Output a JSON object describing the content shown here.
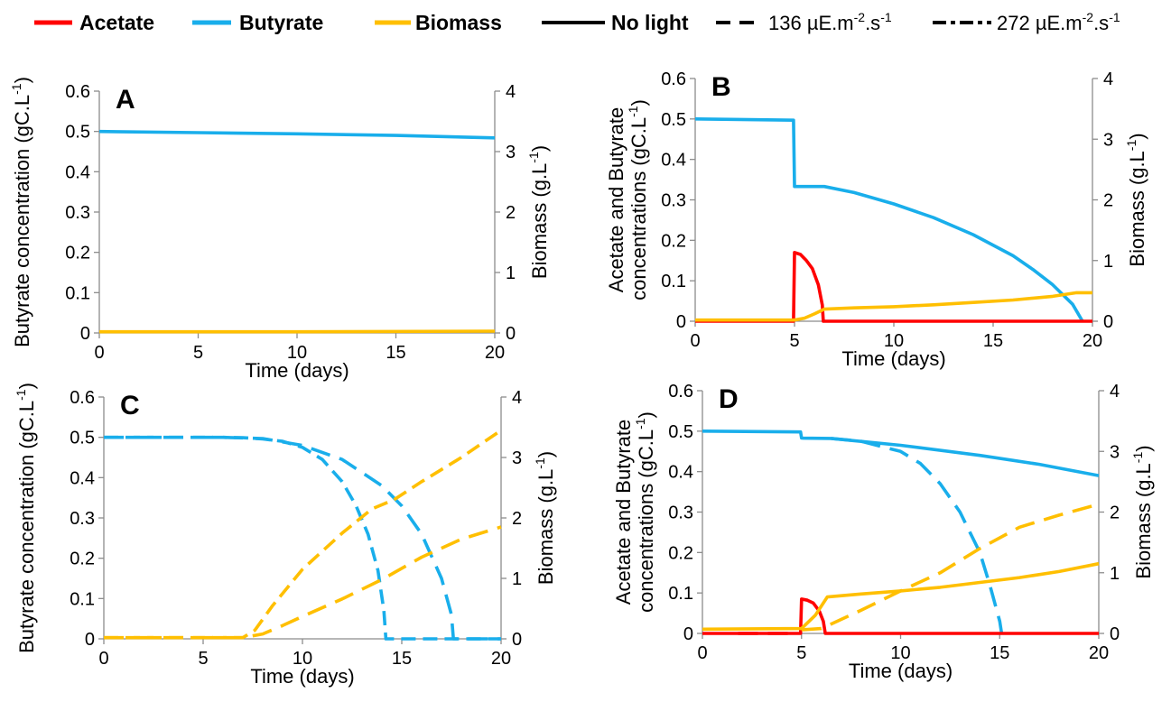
{
  "legend": {
    "acetate": "Acetate",
    "butyrate": "Butyrate",
    "biomass": "Biomass",
    "no_light": "No light",
    "light_136": "136 µE.m",
    "light_272": "272 µE.m",
    "exp_m2": "-2",
    "dot_s": ".s",
    "exp_m1": "-1"
  },
  "colors": {
    "acetate": "#ff0000",
    "butyrate": "#19aeeb",
    "biomass": "#ffbf00",
    "axis": "#8c8c8c"
  },
  "chart_data": [
    {
      "id": "A",
      "type": "line",
      "panel_label": "A",
      "xlabel": "Time (days)",
      "ylabel": "Butyrate concentration (gC.L",
      "ylabel_sup": "-1",
      "ylabel_end": ")",
      "y2label": "Biomass (g.L",
      "y2label_sup": "-1",
      "y2label_end": ")",
      "xlim": [
        0,
        20
      ],
      "ylim": [
        0,
        0.6
      ],
      "y2lim": [
        0,
        4
      ],
      "xticks": [
        "0",
        "5",
        "10",
        "15",
        "20"
      ],
      "yticks": [
        "0",
        "0.1",
        "0.2",
        "0.3",
        "0.4",
        "0.5",
        "0.6"
      ],
      "y2ticks": [
        "0",
        "1",
        "2",
        "3",
        "4"
      ],
      "series": [
        {
          "var": "butyrate",
          "light": "none",
          "axis": "left",
          "x": [
            0,
            5,
            10,
            15,
            20
          ],
          "y": [
            0.5,
            0.497,
            0.494,
            0.49,
            0.484
          ]
        },
        {
          "var": "biomass",
          "light": "none",
          "axis": "right",
          "x": [
            0,
            10,
            20
          ],
          "y": [
            0.02,
            0.02,
            0.03
          ]
        }
      ]
    },
    {
      "id": "B",
      "type": "line",
      "panel_label": "B",
      "xlabel": "Time (days)",
      "ylabel": "Acetate and Butyrate",
      "ylabel2": "concentrations (gC.L",
      "ylabel_sup": "-1",
      "ylabel_end": ")",
      "y2label": "Biomass (g.L",
      "y2label_sup": "-1",
      "y2label_end": ")",
      "xlim": [
        0,
        20
      ],
      "ylim": [
        0,
        0.6
      ],
      "y2lim": [
        0,
        4
      ],
      "xticks": [
        "0",
        "5",
        "10",
        "15",
        "20"
      ],
      "yticks": [
        "0",
        "0.1",
        "0.2",
        "0.3",
        "0.4",
        "0.5",
        "0.6"
      ],
      "y2ticks": [
        "0",
        "1",
        "2",
        "3",
        "4"
      ],
      "series": [
        {
          "var": "butyrate",
          "light": "none",
          "axis": "left",
          "x": [
            0,
            4.95,
            5,
            6.5,
            8,
            10,
            12,
            14,
            16,
            17,
            18,
            19,
            19.5
          ],
          "y": [
            0.5,
            0.497,
            0.333,
            0.333,
            0.318,
            0.29,
            0.256,
            0.214,
            0.162,
            0.128,
            0.09,
            0.042,
            0.0
          ]
        },
        {
          "var": "acetate",
          "light": "none",
          "axis": "left",
          "x": [
            0,
            4.95,
            5,
            5.3,
            5.6,
            5.9,
            6.2,
            6.4,
            6.45,
            20
          ],
          "y": [
            0,
            0,
            0.17,
            0.165,
            0.15,
            0.13,
            0.09,
            0.04,
            0,
            0
          ]
        },
        {
          "var": "biomass",
          "light": "none",
          "axis": "right",
          "x": [
            0,
            5,
            5.5,
            6,
            6.5,
            8,
            10,
            12,
            14,
            16,
            18,
            19.2,
            20
          ],
          "y": [
            0.02,
            0.02,
            0.05,
            0.12,
            0.2,
            0.22,
            0.24,
            0.27,
            0.31,
            0.35,
            0.41,
            0.47,
            0.47
          ]
        }
      ]
    },
    {
      "id": "C",
      "type": "line",
      "panel_label": "C",
      "xlabel": "Time (days)",
      "ylabel": "Butyrate concentration (gC.L",
      "ylabel_sup": "-1",
      "ylabel_end": ")",
      "y2label": "Biomass (g.L",
      "y2label_sup": "-1",
      "y2label_end": ")",
      "xlim": [
        0,
        20
      ],
      "ylim": [
        0,
        0.6
      ],
      "y2lim": [
        0,
        4
      ],
      "xticks": [
        "0",
        "5",
        "10",
        "15",
        "20"
      ],
      "yticks": [
        "0",
        "0.1",
        "0.2",
        "0.3",
        "0.4",
        "0.5",
        "0.6"
      ],
      "y2ticks": [
        "0",
        "1",
        "2",
        "3",
        "4"
      ],
      "series": [
        {
          "var": "butyrate",
          "light": "136",
          "axis": "left",
          "x": [
            0,
            6,
            8,
            10,
            12,
            14,
            15,
            16,
            17,
            17.5,
            17.6,
            20
          ],
          "y": [
            0.5,
            0.5,
            0.497,
            0.48,
            0.445,
            0.38,
            0.33,
            0.26,
            0.15,
            0.06,
            0,
            0
          ]
        },
        {
          "var": "butyrate",
          "light": "272",
          "axis": "left",
          "x": [
            0,
            6,
            7,
            8,
            9,
            10,
            11,
            12,
            12.7,
            13.3,
            13.8,
            14.1,
            14.2,
            20
          ],
          "y": [
            0.5,
            0.5,
            0.499,
            0.496,
            0.49,
            0.475,
            0.445,
            0.39,
            0.33,
            0.26,
            0.17,
            0.07,
            0,
            0
          ]
        },
        {
          "var": "biomass",
          "light": "136",
          "axis": "right",
          "x": [
            0,
            7,
            8,
            9,
            10,
            12,
            14,
            16,
            18,
            20
          ],
          "y": [
            0.02,
            0.02,
            0.08,
            0.22,
            0.37,
            0.66,
            0.98,
            1.35,
            1.65,
            1.85
          ]
        },
        {
          "var": "biomass",
          "light": "272",
          "axis": "right",
          "x": [
            0,
            7,
            7.6,
            8.5,
            10,
            12,
            13.5,
            14.6,
            16,
            18,
            20
          ],
          "y": [
            0.02,
            0.02,
            0.14,
            0.55,
            1.15,
            1.75,
            2.15,
            2.3,
            2.6,
            3.0,
            3.45
          ]
        }
      ]
    },
    {
      "id": "D",
      "type": "line",
      "panel_label": "D",
      "xlabel": "Time (days)",
      "ylabel": "Acetate and Butyrate",
      "ylabel2": "concentrations (gC.L",
      "ylabel_sup": "-1",
      "ylabel_end": ")",
      "y2label": "Biomass (g.L",
      "y2label_sup": "-1",
      "y2label_end": ")",
      "xlim": [
        0,
        20
      ],
      "ylim": [
        0,
        0.6
      ],
      "y2lim": [
        0,
        4
      ],
      "xticks": [
        "0",
        "5",
        "10",
        "15",
        "20"
      ],
      "yticks": [
        "0",
        "0.1",
        "0.2",
        "0.3",
        "0.4",
        "0.5",
        "0.6"
      ],
      "y2ticks": [
        "0",
        "1",
        "2",
        "3",
        "4"
      ],
      "series": [
        {
          "var": "butyrate",
          "light": "none",
          "axis": "left",
          "x": [
            0,
            4.95,
            5,
            6.5,
            10,
            14,
            17,
            20
          ],
          "y": [
            0.5,
            0.498,
            0.483,
            0.482,
            0.465,
            0.44,
            0.418,
            0.39
          ]
        },
        {
          "var": "butyrate",
          "light": "136",
          "axis": "left",
          "x": [
            6.5,
            8,
            10,
            11,
            12,
            13,
            14,
            14.5,
            15,
            15.1
          ],
          "y": [
            0.482,
            0.475,
            0.45,
            0.42,
            0.37,
            0.3,
            0.2,
            0.12,
            0.03,
            0
          ]
        },
        {
          "var": "acetate",
          "light": "none",
          "axis": "left",
          "x": [
            0,
            4.95,
            5,
            5.3,
            5.6,
            5.9,
            6.1,
            6.2,
            20
          ],
          "y": [
            0,
            0,
            0.085,
            0.082,
            0.075,
            0.055,
            0.03,
            0,
            0
          ]
        },
        {
          "var": "acetate",
          "light": "136",
          "axis": "left",
          "x": [
            1.8,
            4.8
          ],
          "y": [
            0,
            0
          ]
        },
        {
          "var": "biomass",
          "light": "none",
          "axis": "right",
          "x": [
            0,
            5,
            5.7,
            6.3,
            8,
            10,
            12,
            14,
            16,
            18,
            20
          ],
          "y": [
            0.07,
            0.08,
            0.3,
            0.6,
            0.65,
            0.7,
            0.76,
            0.84,
            0.92,
            1.02,
            1.15
          ]
        },
        {
          "var": "biomass",
          "light": "136",
          "axis": "right",
          "x": [
            5,
            6,
            8,
            10,
            12,
            14,
            16,
            18,
            20
          ],
          "y": [
            0.06,
            0.08,
            0.38,
            0.7,
            1.0,
            1.4,
            1.75,
            1.95,
            2.13
          ]
        }
      ]
    }
  ]
}
